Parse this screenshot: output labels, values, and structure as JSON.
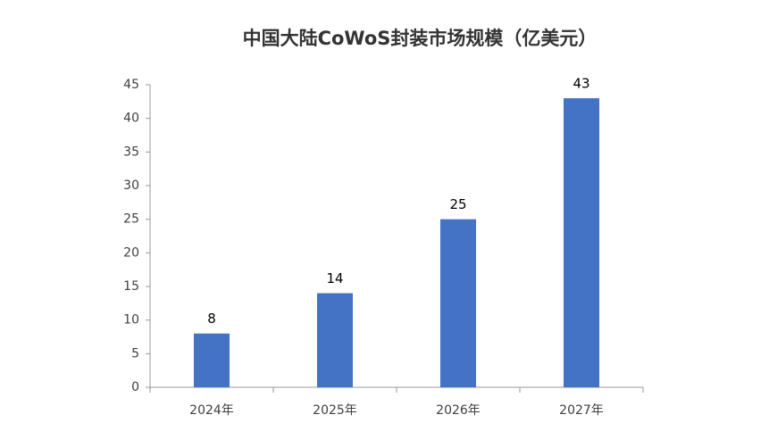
{
  "chart_data": {
    "type": "bar",
    "title": "中国大陆CoWoS封装市场规模（亿美元）",
    "categories": [
      "2024年",
      "2025年",
      "2026年",
      "2027年"
    ],
    "values": [
      8,
      14,
      25,
      43
    ],
    "color": "#4472c4",
    "ylim": [
      0,
      45
    ],
    "yticks": [
      0,
      5,
      10,
      15,
      20,
      25,
      30,
      35,
      40,
      45
    ],
    "grid": false
  }
}
